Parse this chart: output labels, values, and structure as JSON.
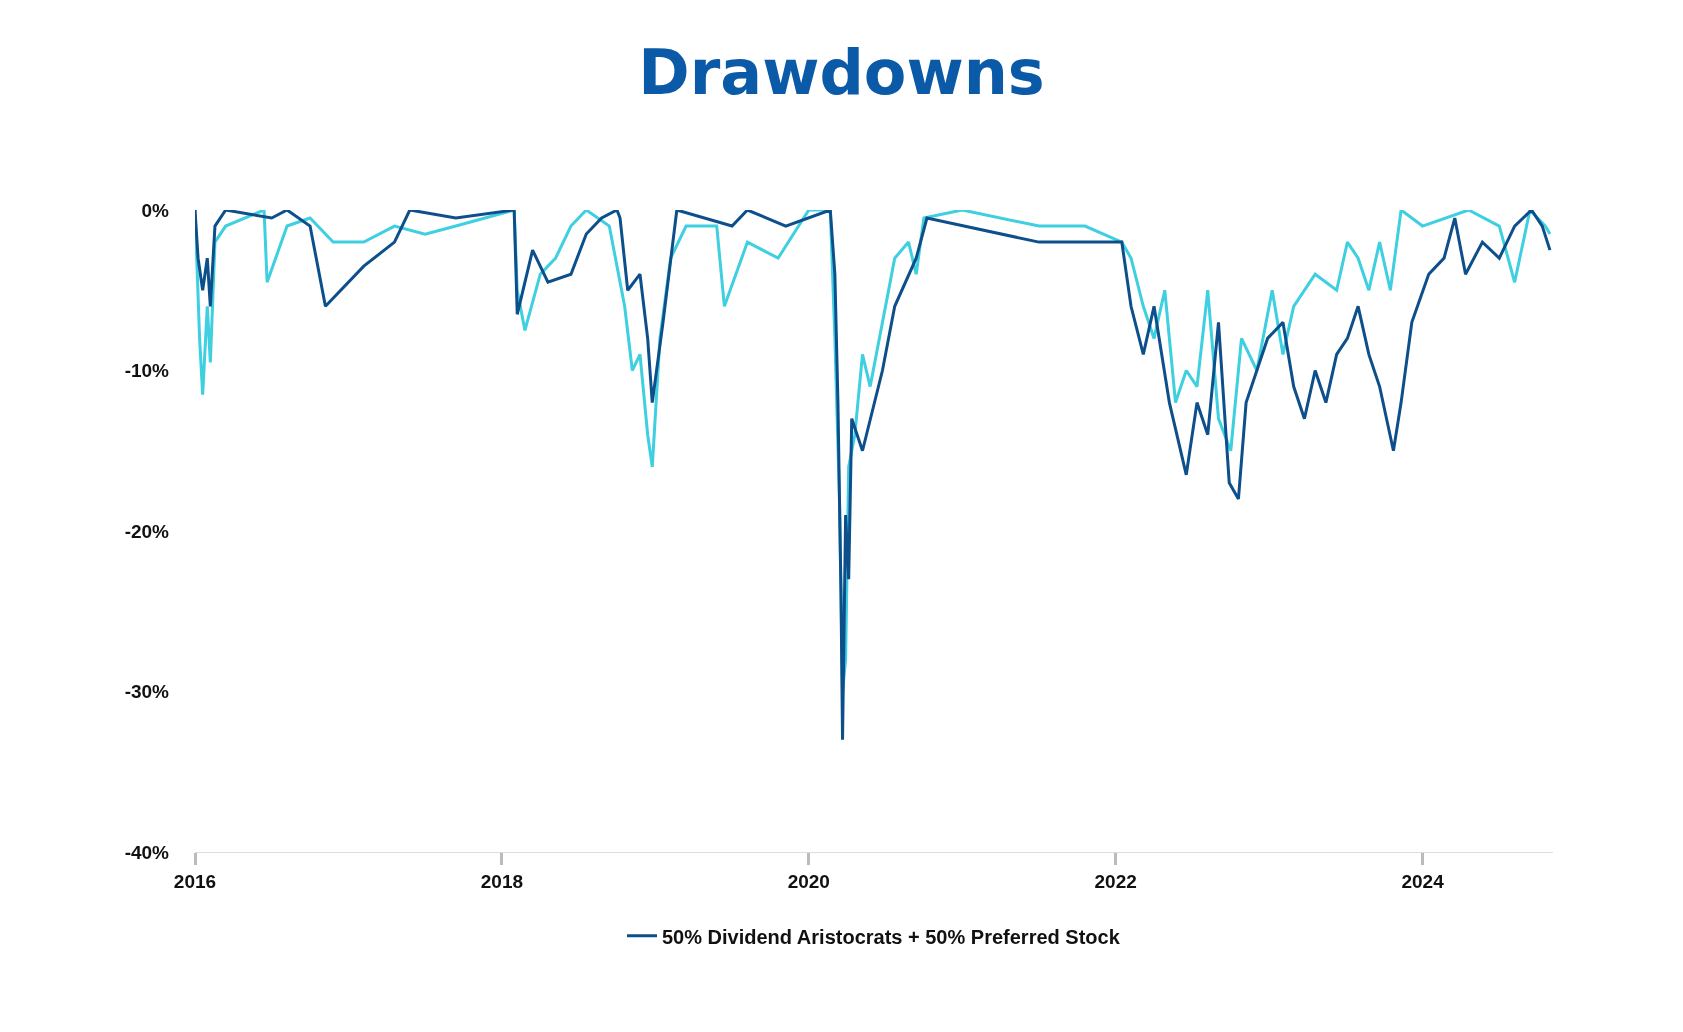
{
  "chart_data": {
    "type": "line",
    "title": "Drawdowns",
    "xlim": [
      2016,
      2024.85
    ],
    "xticks": [
      2016,
      2018,
      2020,
      2022,
      2024
    ],
    "ylim": [
      -40,
      0
    ],
    "yticks": [
      {
        "value": 0,
        "label": "0%"
      },
      {
        "value": -10,
        "label": "-10%"
      },
      {
        "value": -20,
        "label": "-20%"
      },
      {
        "value": -30,
        "label": "-30%"
      },
      {
        "value": -40,
        "label": "-40%"
      }
    ],
    "grid": false,
    "legend": "bottom",
    "marker": "none",
    "line_style": "solid",
    "series": [
      {
        "color": "#3ecfe0",
        "x": [
          2016,
          2016.03,
          2016.05,
          2016.08,
          2016.1,
          2016.13,
          2016.2,
          2016.45,
          2016.47,
          2016.6,
          2016.75,
          2016.9,
          2017.1,
          2017.3,
          2017.5,
          2017.7,
          2018.08,
          2018.1,
          2018.15,
          2018.25,
          2018.35,
          2018.45,
          2018.55,
          2018.7,
          2018.8,
          2018.85,
          2018.9,
          2018.95,
          2018.98,
          2019.03,
          2019.1,
          2019.2,
          2019.4,
          2019.45,
          2019.6,
          2019.8,
          2020.0,
          2020.14,
          2020.17,
          2020.2,
          2020.22,
          2020.24,
          2020.26,
          2020.3,
          2020.35,
          2020.4,
          2020.48,
          2020.56,
          2020.65,
          2020.7,
          2020.75,
          2021.0,
          2021.5,
          2021.8,
          2022.04,
          2022.1,
          2022.18,
          2022.25,
          2022.32,
          2022.39,
          2022.46,
          2022.53,
          2022.6,
          2022.67,
          2022.75,
          2022.82,
          2022.92,
          2023.02,
          2023.09,
          2023.16,
          2023.3,
          2023.44,
          2023.51,
          2023.58,
          2023.65,
          2023.72,
          2023.79,
          2023.86,
          2024.0,
          2024.3,
          2024.5,
          2024.6,
          2024.7,
          2024.8,
          2024.83
        ],
        "values": [
          0,
          -8,
          -11.5,
          -6,
          -9.5,
          -2,
          -1,
          0,
          -4.5,
          -1,
          -0.5,
          -2,
          -2,
          -1,
          -1.5,
          -1,
          0,
          -5,
          -7.5,
          -4,
          -3,
          -1,
          0,
          -1,
          -6,
          -10,
          -9,
          -14,
          -16,
          -8,
          -3,
          -1,
          -1,
          -6,
          -2,
          -3,
          0,
          0,
          -8,
          -18,
          -30,
          -28,
          -16,
          -14,
          -9,
          -11,
          -7,
          -3,
          -2,
          -4,
          -0.5,
          0,
          -1,
          -1,
          -2,
          -3,
          -6,
          -8,
          -5,
          -12,
          -10,
          -11,
          -5,
          -13,
          -15,
          -8,
          -10,
          -5,
          -9,
          -6,
          -4,
          -5,
          -2,
          -3,
          -5,
          -2,
          -5,
          0,
          -1,
          0,
          -1,
          -4.5,
          0,
          -1,
          -1.5
        ]
      },
      {
        "name": "50% Dividend Aristocrats + 50% Preferred Stock",
        "color": "#0d4f8b",
        "x": [
          2016,
          2016.02,
          2016.05,
          2016.08,
          2016.1,
          2016.13,
          2016.2,
          2016.5,
          2016.6,
          2016.75,
          2016.85,
          2017.1,
          2017.3,
          2017.4,
          2017.7,
          2018.08,
          2018.1,
          2018.2,
          2018.3,
          2018.45,
          2018.55,
          2018.65,
          2018.75,
          2018.77,
          2018.82,
          2018.9,
          2018.95,
          2018.98,
          2019.05,
          2019.14,
          2019.5,
          2019.6,
          2019.85,
          2020.14,
          2020.17,
          2020.19,
          2020.21,
          2020.22,
          2020.24,
          2020.26,
          2020.28,
          2020.35,
          2020.48,
          2020.56,
          2020.7,
          2020.77,
          2021.5,
          2022.04,
          2022.1,
          2022.18,
          2022.25,
          2022.35,
          2022.46,
          2022.53,
          2022.6,
          2022.67,
          2022.74,
          2022.8,
          2022.85,
          2022.92,
          2022.99,
          2023.09,
          2023.16,
          2023.23,
          2023.3,
          2023.37,
          2023.44,
          2023.51,
          2023.58,
          2023.65,
          2023.72,
          2023.81,
          2023.86,
          2023.93,
          2024.04,
          2024.14,
          2024.21,
          2024.28,
          2024.39,
          2024.5,
          2024.6,
          2024.71,
          2024.78,
          2024.83
        ],
        "values": [
          0,
          -3,
          -5,
          -3,
          -6,
          -1,
          0,
          -0.5,
          0,
          -1,
          -6,
          -3.5,
          -2,
          0,
          -0.5,
          0,
          -6.5,
          -2.5,
          -4.5,
          -4,
          -1.5,
          -0.5,
          0,
          -0.5,
          -5,
          -4,
          -8,
          -12,
          -7,
          0,
          -1,
          0,
          -1,
          0,
          -4,
          -12,
          -24,
          -33,
          -19,
          -23,
          -13,
          -15,
          -10,
          -6,
          -3,
          -0.5,
          -2,
          -2,
          -6,
          -9,
          -6,
          -12,
          -16.5,
          -12,
          -14,
          -7,
          -17,
          -18,
          -12,
          -10,
          -8,
          -7,
          -11,
          -13,
          -10,
          -12,
          -9,
          -8,
          -6,
          -9,
          -11,
          -15,
          -12,
          -7,
          -4,
          -3,
          -0.5,
          -4,
          -2,
          -3,
          -1,
          0,
          -1,
          -2.5
        ]
      }
    ]
  }
}
